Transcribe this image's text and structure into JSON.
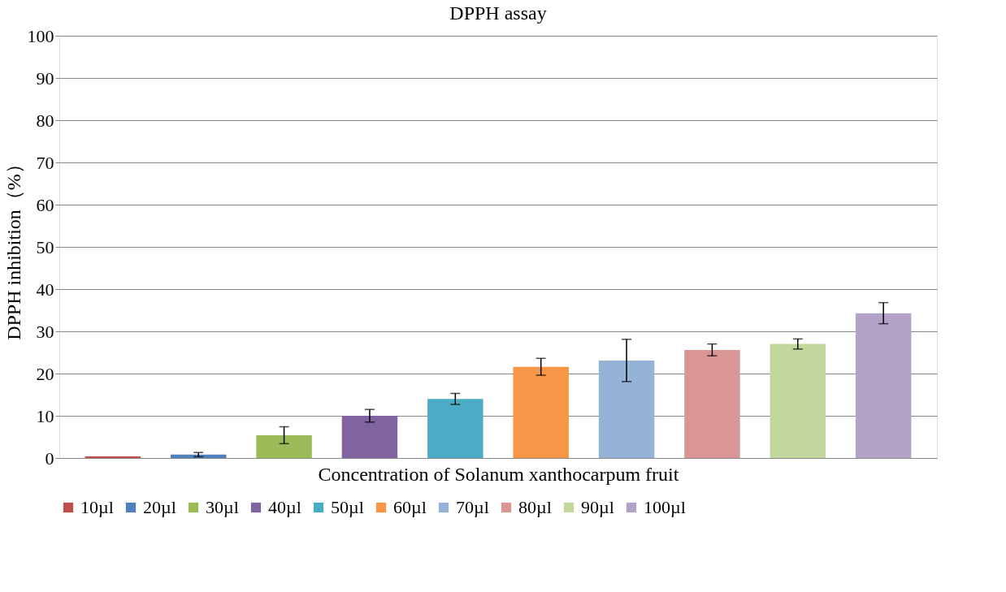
{
  "chart_data": {
    "type": "bar",
    "title": "DPPH assay",
    "xlabel": "Concentration  of Solanum xanthocarpum  fruit",
    "ylabel": "DPPH inhibition（%）",
    "categories": [
      null
    ],
    "series": [
      {
        "name": "10µl",
        "color": "#c0504d",
        "values": [
          0.4
        ],
        "errors": [
          null
        ]
      },
      {
        "name": "20µl",
        "color": "#4f81bd",
        "values": [
          0.8
        ],
        "errors": [
          0.5
        ]
      },
      {
        "name": "30µl",
        "color": "#9bbb59",
        "values": [
          5.4
        ],
        "errors": [
          2
        ]
      },
      {
        "name": "40µl",
        "color": "#8064a2",
        "values": [
          10
        ],
        "errors": [
          1.5
        ]
      },
      {
        "name": "50µl",
        "color": "#4bacc6",
        "values": [
          14
        ],
        "errors": [
          1.3
        ]
      },
      {
        "name": "60µl",
        "color": "#f79646",
        "values": [
          21.6
        ],
        "errors": [
          2
        ]
      },
      {
        "name": "70µl",
        "color": "#95b3d7",
        "values": [
          23.1
        ],
        "errors": [
          5
        ]
      },
      {
        "name": "80µl",
        "color": "#d99694",
        "values": [
          25.6
        ],
        "errors": [
          1.4
        ]
      },
      {
        "name": "90µl",
        "color": "#c3d69b",
        "values": [
          27
        ],
        "errors": [
          1.2
        ]
      },
      {
        "name": "100µl",
        "color": "#b3a2c7",
        "values": [
          34.3
        ],
        "errors": [
          2.5
        ]
      }
    ],
    "ylim": [
      0,
      100
    ],
    "yticks": [
      0,
      10,
      20,
      30,
      40,
      50,
      60,
      70,
      80,
      90,
      100
    ],
    "grid": "y",
    "legend": "bottom"
  }
}
